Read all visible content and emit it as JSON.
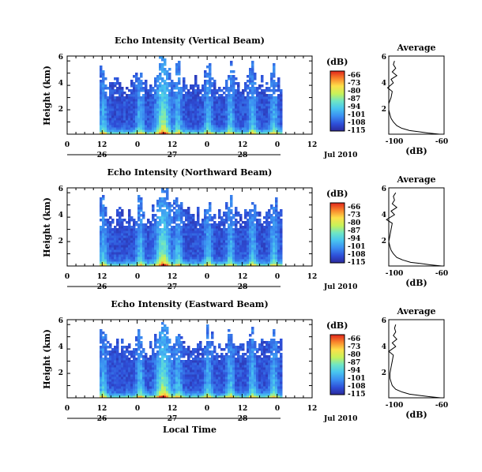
{
  "chart_data": [
    {
      "type": "heatmap",
      "title": "Echo Intensity (Vertical Beam)",
      "ylabel": "Height (km)",
      "y_ticks": [
        "6",
        "4",
        "2"
      ],
      "x_ticks": [
        "0",
        "12",
        "0",
        "12",
        "0",
        "12",
        "0",
        "12"
      ],
      "date_labels": [
        "26",
        "27",
        "28"
      ],
      "month_label": "Jul 2010",
      "colorbar": {
        "label": "(dB)",
        "ticks": [
          "-66",
          "-73",
          "-80",
          "-87",
          "-94",
          "-101",
          "-108",
          "-115"
        ]
      },
      "average": {
        "title": "Average",
        "xlabel": "(dB)",
        "x_ticks": [
          "-100",
          "-60"
        ],
        "y_ticks": [
          "6",
          "4",
          "2"
        ],
        "heights": [
          0.0,
          0.1,
          0.2,
          0.3,
          0.5,
          0.7,
          1.0,
          1.3,
          1.6,
          2.0,
          2.5,
          3.0,
          3.5,
          3.8,
          4.2,
          4.5,
          4.8,
          5.1,
          5.4,
          5.7,
          6.0
        ],
        "values": [
          -62,
          -72,
          -80,
          -88,
          -95,
          -99,
          -102,
          -104,
          -105,
          -106,
          -106,
          -104,
          -103,
          -107,
          -102,
          -104,
          -99,
          -103,
          -100,
          -102,
          -101
        ]
      }
    },
    {
      "type": "heatmap",
      "title": "Echo Intensity (Northward Beam)",
      "ylabel": "Height (km)",
      "y_ticks": [
        "6",
        "4",
        "2"
      ],
      "x_ticks": [
        "0",
        "12",
        "0",
        "12",
        "0",
        "12",
        "0",
        "12"
      ],
      "date_labels": [
        "26",
        "27",
        "28"
      ],
      "month_label": "Jul 2010",
      "colorbar": {
        "label": "(dB)",
        "ticks": [
          "-66",
          "-73",
          "-80",
          "-87",
          "-94",
          "-101",
          "-108",
          "-115"
        ]
      },
      "average": {
        "title": "Average",
        "xlabel": "(dB)",
        "x_ticks": [
          "-100",
          "-60"
        ],
        "y_ticks": [
          "6",
          "4",
          "2"
        ],
        "heights": [
          0.0,
          0.1,
          0.2,
          0.3,
          0.5,
          0.7,
          1.0,
          1.3,
          1.6,
          2.0,
          2.5,
          3.0,
          3.5,
          3.8,
          4.2,
          4.5,
          4.8,
          5.1,
          5.4,
          5.7,
          6.0
        ],
        "values": [
          -60,
          -70,
          -78,
          -87,
          -94,
          -99,
          -102,
          -104,
          -105,
          -106,
          -105,
          -104,
          -103,
          -108,
          -101,
          -104,
          -99,
          -103,
          -101,
          -102,
          -100
        ]
      }
    },
    {
      "type": "heatmap",
      "title": "Echo Intensity (Eastward Beam)",
      "ylabel": "Height (km)",
      "y_ticks": [
        "6",
        "4",
        "2"
      ],
      "x_ticks": [
        "0",
        "12",
        "0",
        "12",
        "0",
        "12",
        "0",
        "12"
      ],
      "date_labels": [
        "26",
        "27",
        "28"
      ],
      "month_label": "Jul 2010",
      "colorbar": {
        "label": "(dB)",
        "ticks": [
          "-66",
          "-73",
          "-80",
          "-87",
          "-94",
          "-101",
          "-108",
          "-115"
        ]
      },
      "average": {
        "title": "Average",
        "xlabel": "(dB)",
        "x_ticks": [
          "-100",
          "-60"
        ],
        "y_ticks": [
          "6",
          "4",
          "2"
        ],
        "heights": [
          0.0,
          0.1,
          0.2,
          0.3,
          0.5,
          0.7,
          1.0,
          1.3,
          1.6,
          2.0,
          2.5,
          3.0,
          3.5,
          3.8,
          4.2,
          4.5,
          4.8,
          5.1,
          5.4,
          5.7,
          6.0
        ],
        "values": [
          -61,
          -71,
          -80,
          -88,
          -95,
          -100,
          -103,
          -104,
          -105,
          -105,
          -104,
          -103,
          -102,
          -106,
          -100,
          -103,
          -99,
          -102,
          -100,
          -101,
          -100
        ]
      }
    }
  ],
  "footer": {
    "xlabel": "Local Time"
  }
}
